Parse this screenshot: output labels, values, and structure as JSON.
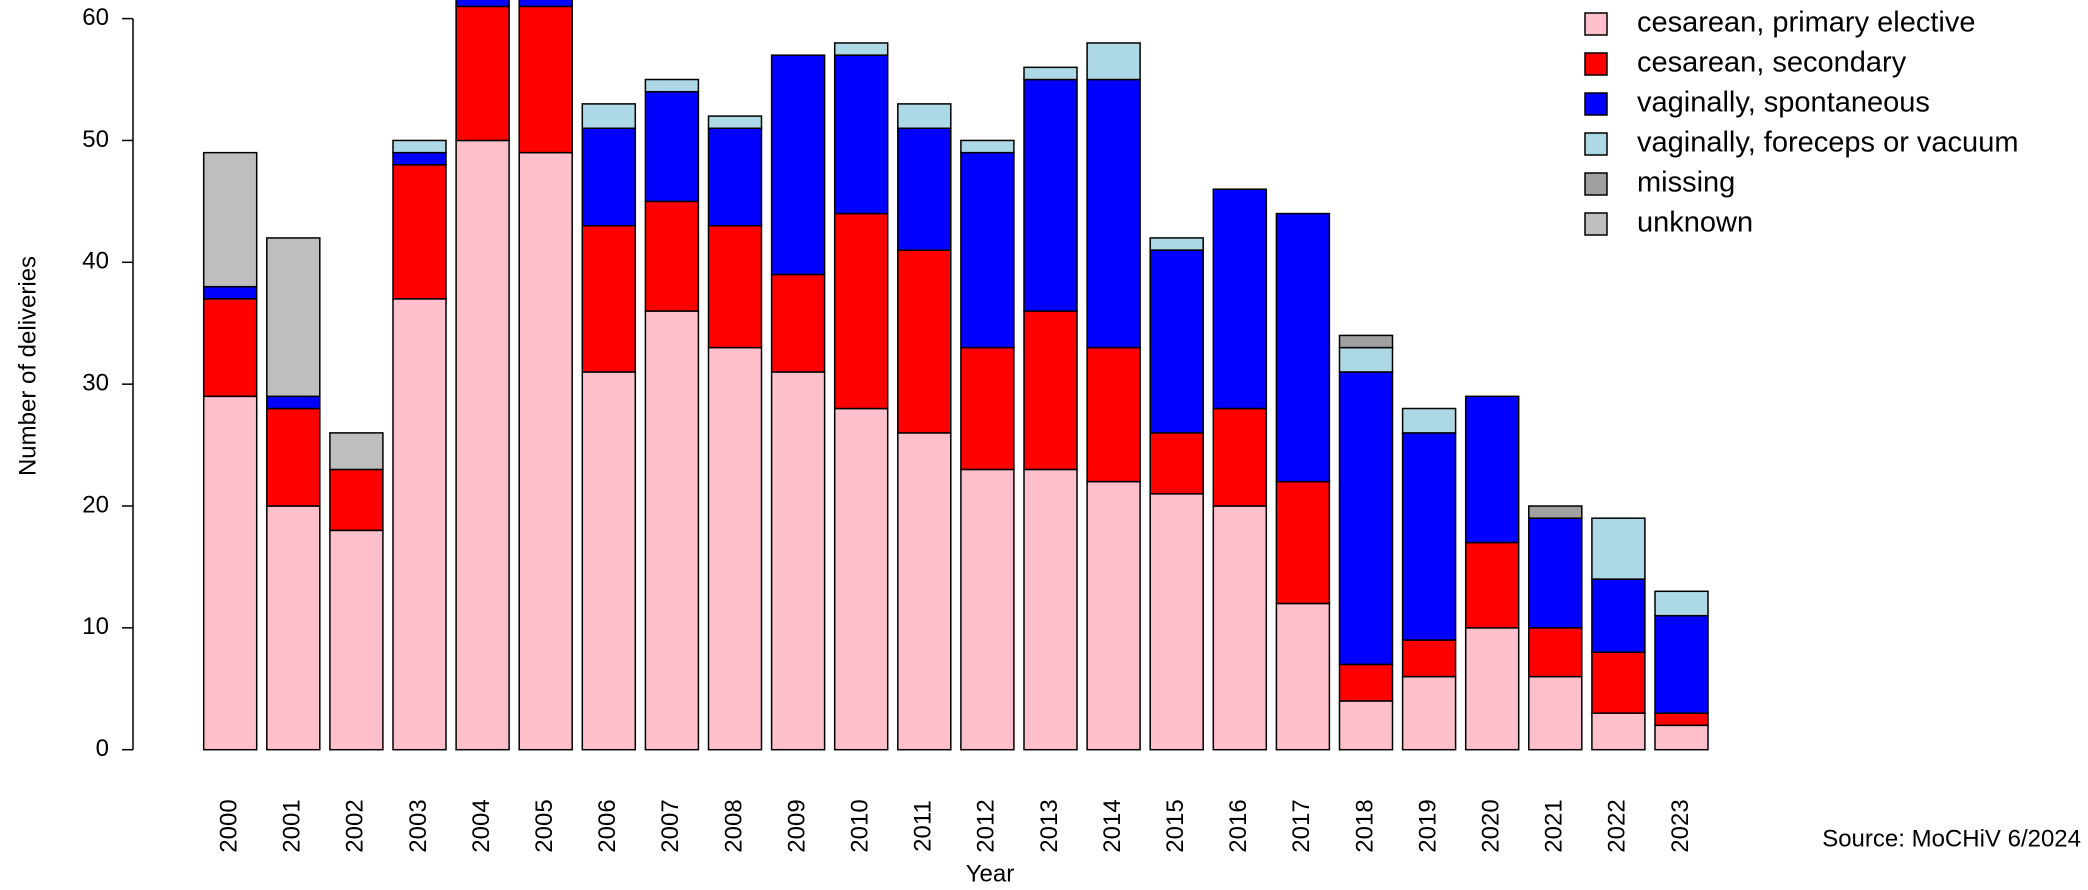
{
  "chart_data": {
    "type": "stacked_bar",
    "x_label": "Year",
    "y_label": "Number of deliveries",
    "source": "Source: MoCHiV 6/2024",
    "categories": [
      "2000",
      "2001",
      "2002",
      "2003",
      "2004",
      "2005",
      "2006",
      "2007",
      "2008",
      "2009",
      "2010",
      "2011",
      "2012",
      "2013",
      "2014",
      "2015",
      "2016",
      "2017",
      "2018",
      "2019",
      "2020",
      "2021",
      "2022",
      "2023"
    ],
    "series": [
      {
        "name": "cesarean, primary elective",
        "color": "#ffc0cb",
        "values": [
          29,
          20,
          18,
          37,
          50,
          49,
          31,
          36,
          33,
          31,
          28,
          26,
          23,
          23,
          22,
          21,
          20,
          12,
          4,
          6,
          10,
          6,
          3,
          2
        ]
      },
      {
        "name": "cesarean, secondary",
        "color": "#ff0000",
        "values": [
          8,
          8,
          5,
          11,
          11,
          12,
          12,
          9,
          10,
          8,
          16,
          15,
          10,
          13,
          11,
          5,
          8,
          10,
          3,
          3,
          7,
          4,
          5,
          1
        ]
      },
      {
        "name": "vaginally, spontaneous",
        "color": "#0000ff",
        "values": [
          1,
          1,
          0,
          1,
          2,
          2,
          8,
          9,
          8,
          18,
          13,
          10,
          16,
          19,
          22,
          15,
          18,
          22,
          24,
          17,
          12,
          9,
          6,
          8
        ]
      },
      {
        "name": "vaginally, foreceps or vacuum",
        "color": "#add8e6",
        "values": [
          0,
          0,
          0,
          1,
          0,
          0,
          2,
          1,
          1,
          0,
          1,
          2,
          1,
          1,
          3,
          1,
          0,
          0,
          2,
          2,
          0,
          0,
          5,
          2
        ]
      },
      {
        "name": "missing",
        "color": "#a0a0a0",
        "values": [
          0,
          0,
          0,
          0,
          0,
          0,
          0,
          0,
          0,
          0,
          0,
          0,
          0,
          0,
          0,
          0,
          0,
          0,
          1,
          0,
          0,
          1,
          0,
          0
        ]
      },
      {
        "name": "unknown",
        "color": "#bebebe",
        "values": [
          11,
          13,
          3,
          0,
          0,
          0,
          0,
          0,
          0,
          0,
          0,
          0,
          0,
          0,
          0,
          0,
          0,
          0,
          0,
          0,
          0,
          0,
          0,
          0
        ]
      }
    ],
    "ylim": [
      0,
      60
    ],
    "yticks": [
      0,
      10,
      20,
      30,
      40,
      50,
      60
    ],
    "legend": "top-right"
  }
}
